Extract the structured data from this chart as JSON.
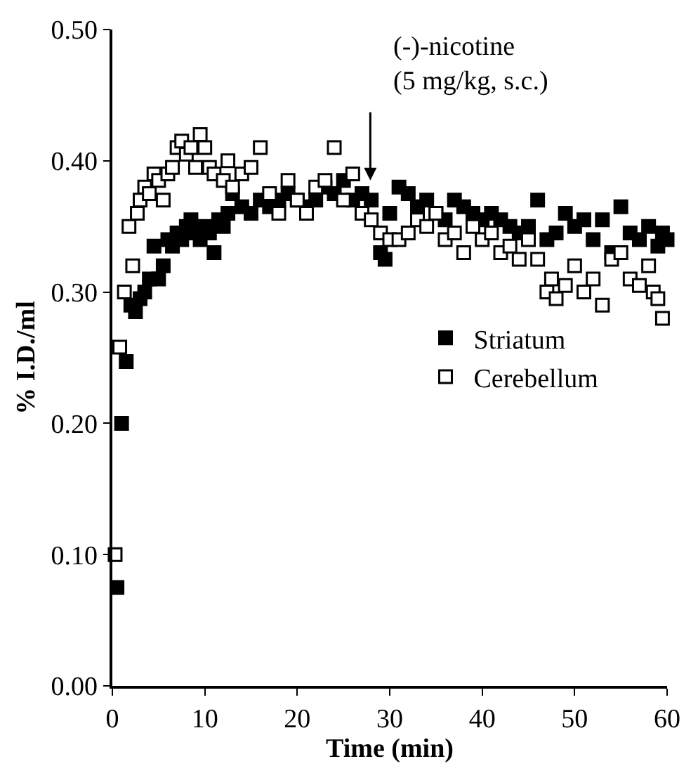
{
  "chart_data": {
    "type": "scatter",
    "xlabel": "Time (min)",
    "ylabel": "% I.D./ml",
    "xlim": [
      0,
      60
    ],
    "xticks": [
      0,
      10,
      20,
      30,
      40,
      50,
      60
    ],
    "ylim": [
      0,
      0.5
    ],
    "yticks": [
      {
        "value": 0,
        "label": "0.00"
      },
      {
        "value": 0.1,
        "label": "0.10"
      },
      {
        "value": 0.2,
        "label": "0.20"
      },
      {
        "value": 0.3,
        "label": "0.30"
      },
      {
        "value": 0.4,
        "label": "0.40"
      },
      {
        "value": 0.5,
        "label": "0.50"
      }
    ],
    "legend": "right",
    "annotations": [
      "(-)-nicotine\n(5 mg/kg, s.c.)"
    ],
    "series": [
      {
        "name": "Striatum",
        "color": "#000000",
        "marker": "square",
        "x": [
          0.5,
          1,
          1.5,
          2,
          2.5,
          3,
          3.5,
          4,
          4.5,
          5,
          5.5,
          6,
          6.5,
          7,
          7.5,
          8,
          8.5,
          9,
          9.5,
          10,
          10.5,
          11,
          11.5,
          12,
          12.5,
          13,
          14,
          15,
          16,
          17,
          18,
          19,
          20,
          21,
          22,
          23,
          24,
          25,
          26,
          27,
          28,
          29,
          29.5,
          30,
          31,
          32,
          33,
          34,
          35,
          36,
          37,
          38,
          39,
          40,
          41,
          42,
          43,
          44,
          45,
          46,
          47,
          48,
          49,
          50,
          51,
          52,
          53,
          54,
          55,
          56,
          57,
          58,
          59,
          59.5,
          60
        ],
        "values": [
          0.075,
          0.2,
          0.247,
          0.29,
          0.285,
          0.295,
          0.3,
          0.31,
          0.335,
          0.31,
          0.32,
          0.34,
          0.335,
          0.345,
          0.34,
          0.35,
          0.355,
          0.345,
          0.34,
          0.35,
          0.345,
          0.33,
          0.355,
          0.35,
          0.36,
          0.375,
          0.365,
          0.36,
          0.37,
          0.365,
          0.37,
          0.375,
          0.37,
          0.365,
          0.37,
          0.38,
          0.375,
          0.385,
          0.37,
          0.375,
          0.37,
          0.33,
          0.325,
          0.36,
          0.38,
          0.375,
          0.365,
          0.37,
          0.36,
          0.355,
          0.37,
          0.365,
          0.36,
          0.355,
          0.36,
          0.355,
          0.35,
          0.345,
          0.35,
          0.37,
          0.34,
          0.345,
          0.36,
          0.35,
          0.355,
          0.34,
          0.355,
          0.33,
          0.365,
          0.345,
          0.34,
          0.35,
          0.335,
          0.345,
          0.34
        ]
      },
      {
        "name": "Cerebellum",
        "color": "#000000",
        "marker": "square-open",
        "x": [
          0.3,
          0.8,
          1.3,
          1.8,
          2.2,
          2.7,
          3,
          3.5,
          4,
          4.5,
          5,
          5.5,
          6,
          6.5,
          7,
          7.5,
          8,
          8.5,
          9,
          9.5,
          10,
          10.5,
          11,
          12,
          12.5,
          13,
          14,
          15,
          16,
          17,
          18,
          19,
          20,
          21,
          22,
          23,
          24,
          25,
          26,
          27,
          28,
          29,
          30,
          31,
          32,
          33,
          34,
          35,
          36,
          37,
          38,
          39,
          40,
          41,
          42,
          43,
          44,
          45,
          46,
          47,
          47.5,
          48,
          49,
          50,
          51,
          52,
          53,
          54,
          55,
          56,
          57,
          58,
          58.5,
          59,
          59.5
        ],
        "values": [
          0.1,
          0.258,
          0.3,
          0.35,
          0.32,
          0.36,
          0.37,
          0.38,
          0.375,
          0.39,
          0.385,
          0.37,
          0.39,
          0.395,
          0.41,
          0.415,
          0.405,
          0.41,
          0.395,
          0.42,
          0.41,
          0.395,
          0.39,
          0.385,
          0.4,
          0.38,
          0.39,
          0.395,
          0.41,
          0.375,
          0.36,
          0.385,
          0.37,
          0.36,
          0.38,
          0.385,
          0.41,
          0.37,
          0.39,
          0.36,
          0.355,
          0.345,
          0.34,
          0.34,
          0.345,
          0.355,
          0.35,
          0.36,
          0.34,
          0.345,
          0.33,
          0.35,
          0.34,
          0.345,
          0.33,
          0.335,
          0.325,
          0.34,
          0.325,
          0.3,
          0.31,
          0.295,
          0.305,
          0.32,
          0.3,
          0.31,
          0.29,
          0.325,
          0.33,
          0.31,
          0.305,
          0.32,
          0.3,
          0.295,
          0.28
        ]
      }
    ]
  }
}
